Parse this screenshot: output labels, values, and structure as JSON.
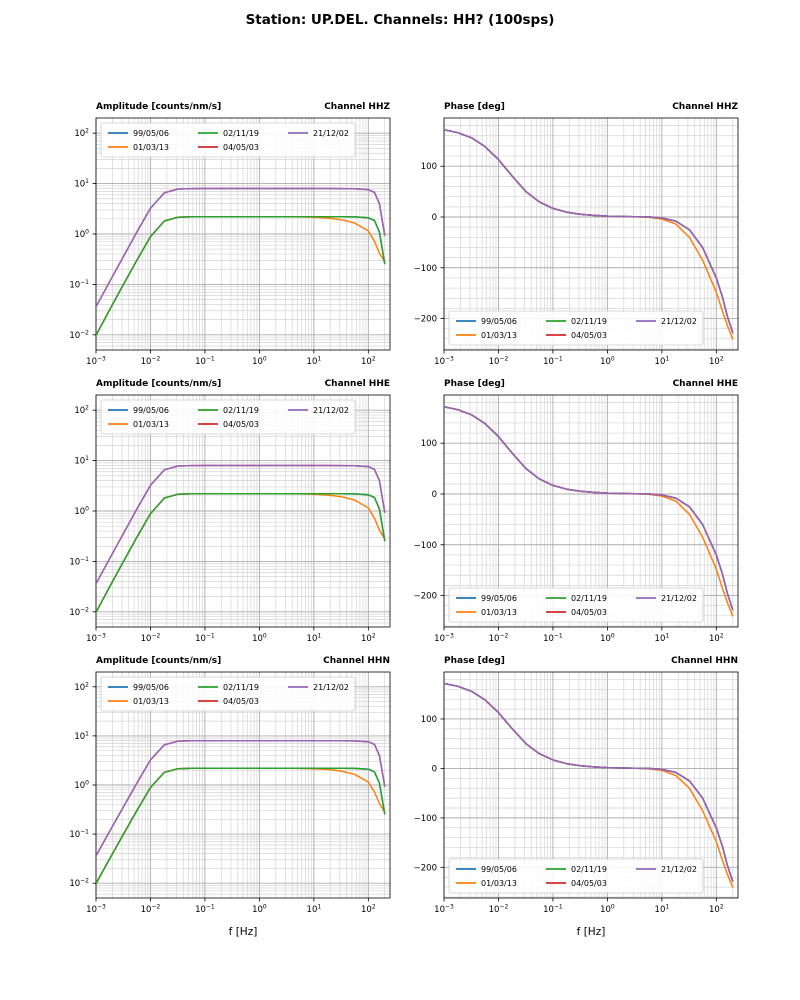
{
  "figure": {
    "title": "Station: UP.DEL. Channels: HH? (100sps)"
  },
  "legend_labels": [
    "99/05/06",
    "01/03/13",
    "02/11/19",
    "04/05/03",
    "21/12/02"
  ],
  "frequencies": [
    0.001,
    0.0018,
    0.0032,
    0.0056,
    0.01,
    0.018,
    0.032,
    0.056,
    0.1,
    0.18,
    0.32,
    0.56,
    1,
    1.8,
    3.2,
    5.6,
    10,
    18,
    32,
    56,
    100,
    130,
    160,
    200
  ],
  "amp_standard": [
    0.0098,
    0.032,
    0.1,
    0.3,
    0.89,
    1.81,
    2.15,
    2.19,
    2.2,
    2.2,
    2.2,
    2.2,
    2.2,
    2.2,
    2.2,
    2.2,
    2.2,
    2.2,
    2.19,
    2.18,
    2.1,
    1.85,
    1.1,
    0.26
  ],
  "amp_orange": [
    0.0098,
    0.032,
    0.1,
    0.3,
    0.89,
    1.81,
    2.15,
    2.19,
    2.2,
    2.2,
    2.2,
    2.2,
    2.2,
    2.2,
    2.19,
    2.18,
    2.15,
    2.08,
    1.92,
    1.65,
    1.15,
    0.72,
    0.42,
    0.28
  ],
  "amp_high": [
    0.036,
    0.116,
    0.36,
    1.09,
    3.24,
    6.58,
    7.82,
    7.97,
    8.0,
    8.0,
    8.0,
    8.0,
    8.0,
    8.0,
    8.0,
    8.0,
    8.0,
    8.0,
    7.97,
    7.9,
    7.6,
    6.7,
    4.0,
    0.95
  ],
  "phase_standard": [
    172,
    166,
    156,
    139,
    113,
    80,
    50,
    30,
    17,
    9.5,
    5.4,
    3.1,
    1.7,
    0.9,
    0.4,
    0.1,
    -2,
    -8,
    -25,
    -60,
    -120,
    -158,
    -196,
    -228
  ],
  "phase_orange": [
    172,
    166,
    156,
    139,
    113,
    80,
    50,
    30,
    17,
    9.5,
    5.4,
    3.1,
    1.6,
    0.7,
    0.2,
    -0.5,
    -4,
    -14,
    -40,
    -85,
    -148,
    -186,
    -214,
    -240
  ],
  "chart_data": [
    {
      "type": "line",
      "title_left": "Amplitude [counts/nm/s]",
      "title_right": "Channel HHZ",
      "xscale": "log",
      "yscale": "log",
      "xlim": [
        0.001,
        250
      ],
      "ylim": [
        0.005,
        200
      ],
      "xticks": [
        0.001,
        0.01,
        0.1,
        1,
        10,
        100
      ],
      "yticks": [
        0.01,
        0.1,
        1,
        10,
        100
      ],
      "xlabel": "",
      "legend_pos": "upper",
      "x_ref": "frequencies",
      "series": [
        {
          "name": "99/05/06",
          "color": "#1f77b4",
          "ref": "amp_standard"
        },
        {
          "name": "01/03/13",
          "color": "#ff7f0e",
          "ref": "amp_orange"
        },
        {
          "name": "02/11/19",
          "color": "#2ca02c",
          "ref": "amp_standard"
        },
        {
          "name": "04/05/03",
          "color": "#d62728",
          "ref": "amp_high"
        },
        {
          "name": "21/12/02",
          "color": "#9467bd",
          "ref": "amp_high"
        }
      ]
    },
    {
      "type": "line",
      "title_left": "Phase [deg]",
      "title_right": "Channel HHZ",
      "xscale": "log",
      "yscale": "linear",
      "xlim": [
        0.001,
        250
      ],
      "ylim": [
        -262,
        195
      ],
      "xticks": [
        0.001,
        0.01,
        0.1,
        1,
        10,
        100
      ],
      "yticks": [
        -200,
        -100,
        0,
        100
      ],
      "xlabel": "",
      "legend_pos": "lower",
      "x_ref": "frequencies",
      "series": [
        {
          "name": "99/05/06",
          "color": "#1f77b4",
          "ref": "phase_standard"
        },
        {
          "name": "01/03/13",
          "color": "#ff7f0e",
          "ref": "phase_orange"
        },
        {
          "name": "02/11/19",
          "color": "#2ca02c",
          "ref": "phase_standard"
        },
        {
          "name": "04/05/03",
          "color": "#d62728",
          "ref": "phase_standard"
        },
        {
          "name": "21/12/02",
          "color": "#9467bd",
          "ref": "phase_standard"
        }
      ]
    },
    {
      "type": "line",
      "title_left": "Amplitude [counts/nm/s]",
      "title_right": "Channel HHE",
      "xscale": "log",
      "yscale": "log",
      "xlim": [
        0.001,
        250
      ],
      "ylim": [
        0.005,
        200
      ],
      "xticks": [
        0.001,
        0.01,
        0.1,
        1,
        10,
        100
      ],
      "yticks": [
        0.01,
        0.1,
        1,
        10,
        100
      ],
      "xlabel": "",
      "legend_pos": "upper",
      "x_ref": "frequencies",
      "series": [
        {
          "name": "99/05/06",
          "color": "#1f77b4",
          "ref": "amp_standard"
        },
        {
          "name": "01/03/13",
          "color": "#ff7f0e",
          "ref": "amp_orange"
        },
        {
          "name": "02/11/19",
          "color": "#2ca02c",
          "ref": "amp_standard"
        },
        {
          "name": "04/05/03",
          "color": "#d62728",
          "ref": "amp_high"
        },
        {
          "name": "21/12/02",
          "color": "#9467bd",
          "ref": "amp_high"
        }
      ]
    },
    {
      "type": "line",
      "title_left": "Phase [deg]",
      "title_right": "Channel HHE",
      "xscale": "log",
      "yscale": "linear",
      "xlim": [
        0.001,
        250
      ],
      "ylim": [
        -262,
        195
      ],
      "xticks": [
        0.001,
        0.01,
        0.1,
        1,
        10,
        100
      ],
      "yticks": [
        -200,
        -100,
        0,
        100
      ],
      "xlabel": "",
      "legend_pos": "lower",
      "x_ref": "frequencies",
      "series": [
        {
          "name": "99/05/06",
          "color": "#1f77b4",
          "ref": "phase_standard"
        },
        {
          "name": "01/03/13",
          "color": "#ff7f0e",
          "ref": "phase_orange"
        },
        {
          "name": "02/11/19",
          "color": "#2ca02c",
          "ref": "phase_standard"
        },
        {
          "name": "04/05/03",
          "color": "#d62728",
          "ref": "phase_standard"
        },
        {
          "name": "21/12/02",
          "color": "#9467bd",
          "ref": "phase_standard"
        }
      ]
    },
    {
      "type": "line",
      "title_left": "Amplitude [counts/nm/s]",
      "title_right": "Channel HHN",
      "xscale": "log",
      "yscale": "log",
      "xlim": [
        0.001,
        250
      ],
      "ylim": [
        0.005,
        200
      ],
      "xticks": [
        0.001,
        0.01,
        0.1,
        1,
        10,
        100
      ],
      "yticks": [
        0.01,
        0.1,
        1,
        10,
        100
      ],
      "xlabel": "f [Hz]",
      "legend_pos": "upper",
      "x_ref": "frequencies",
      "series": [
        {
          "name": "99/05/06",
          "color": "#1f77b4",
          "ref": "amp_standard"
        },
        {
          "name": "01/03/13",
          "color": "#ff7f0e",
          "ref": "amp_orange"
        },
        {
          "name": "02/11/19",
          "color": "#2ca02c",
          "ref": "amp_standard"
        },
        {
          "name": "04/05/03",
          "color": "#d62728",
          "ref": "amp_high"
        },
        {
          "name": "21/12/02",
          "color": "#9467bd",
          "ref": "amp_high"
        }
      ]
    },
    {
      "type": "line",
      "title_left": "Phase [deg]",
      "title_right": "Channel HHN",
      "xscale": "log",
      "yscale": "linear",
      "xlim": [
        0.001,
        250
      ],
      "ylim": [
        -262,
        195
      ],
      "xticks": [
        0.001,
        0.01,
        0.1,
        1,
        10,
        100
      ],
      "yticks": [
        -200,
        -100,
        0,
        100
      ],
      "xlabel": "f [Hz]",
      "legend_pos": "lower",
      "x_ref": "frequencies",
      "series": [
        {
          "name": "99/05/06",
          "color": "#1f77b4",
          "ref": "phase_standard"
        },
        {
          "name": "01/03/13",
          "color": "#ff7f0e",
          "ref": "phase_orange"
        },
        {
          "name": "02/11/19",
          "color": "#2ca02c",
          "ref": "phase_standard"
        },
        {
          "name": "04/05/03",
          "color": "#d62728",
          "ref": "phase_standard"
        },
        {
          "name": "21/12/02",
          "color": "#9467bd",
          "ref": "phase_standard"
        }
      ]
    }
  ]
}
